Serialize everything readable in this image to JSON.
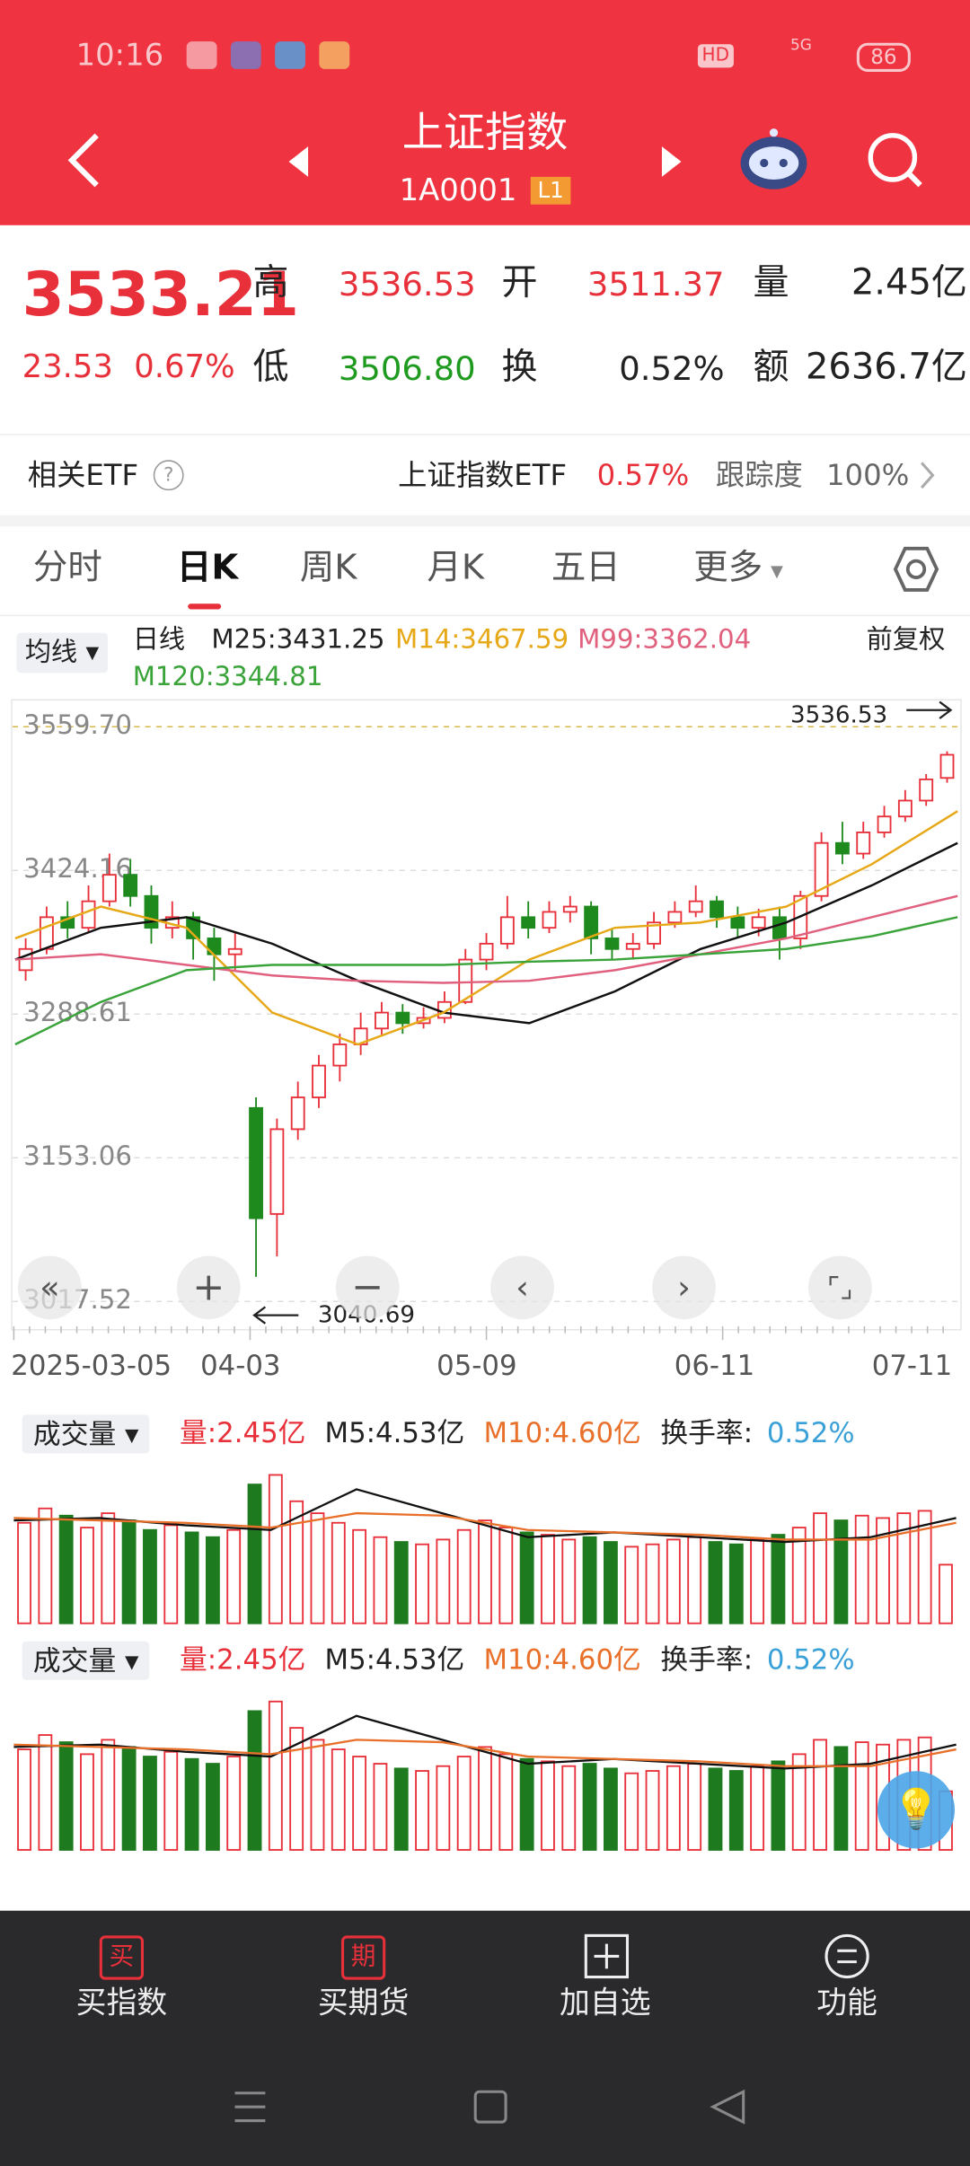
{
  "status": {
    "time": "10:16",
    "hd": "HD",
    "net": "5G",
    "battery": "86"
  },
  "header": {
    "title": "上证指数",
    "code": "1A0001",
    "level": "L1"
  },
  "quote": {
    "price": "3533.21",
    "change": "23.53",
    "change_pct": "0.67%",
    "high_label": "高",
    "high": "3536.53",
    "open_label": "开",
    "open": "3511.37",
    "vol_label": "量",
    "vol": "2.45亿",
    "low_label": "低",
    "low": "3506.80",
    "turn_label": "换",
    "turn": "0.52%",
    "amount_label": "额",
    "amount": "2636.7亿"
  },
  "etf": {
    "label": "相关ETF",
    "name": "上证指数ETF",
    "pct": "0.57%",
    "track_label": "跟踪度",
    "track": "100%"
  },
  "tabs": [
    "分时",
    "日K",
    "周K",
    "月K",
    "五日",
    "更多"
  ],
  "ma_bar": {
    "selector": "均线",
    "period": "日线",
    "m25": "M25:3431.25",
    "m14": "M14:3467.59",
    "m99": "M99:3362.04",
    "m120": "M120:3344.81",
    "adjust": "前复权"
  },
  "kline": {
    "yticks": [
      {
        "value": 3559.7,
        "label": "3559.70"
      },
      {
        "value": 3424.16,
        "label": "3424.16"
      },
      {
        "value": 3288.61,
        "label": "3288.61"
      },
      {
        "value": 3153.06,
        "label": "3153.06"
      },
      {
        "value": 3017.52,
        "label": "3017.52"
      }
    ],
    "high_marker": "3536.53",
    "low_marker": "3040.69",
    "dates": [
      "2025-03-05",
      "04-03",
      "05-09",
      "06-11",
      "07-11"
    ],
    "candles": [
      [
        3330,
        3350,
        3360,
        3320
      ],
      [
        3350,
        3380,
        3390,
        3345
      ],
      [
        3380,
        3370,
        3395,
        3360
      ],
      [
        3370,
        3395,
        3410,
        3365
      ],
      [
        3395,
        3420,
        3440,
        3390
      ],
      [
        3420,
        3400,
        3435,
        3390
      ],
      [
        3400,
        3370,
        3410,
        3355
      ],
      [
        3370,
        3380,
        3395,
        3360
      ],
      [
        3380,
        3360,
        3385,
        3340
      ],
      [
        3360,
        3345,
        3370,
        3320
      ],
      [
        3345,
        3350,
        3365,
        3330
      ],
      [
        3200,
        3096,
        3210,
        3040.69
      ],
      [
        3100,
        3180,
        3190,
        3060
      ],
      [
        3180,
        3210,
        3225,
        3170
      ],
      [
        3210,
        3240,
        3250,
        3200
      ],
      [
        3240,
        3260,
        3270,
        3225
      ],
      [
        3260,
        3275,
        3290,
        3250
      ],
      [
        3275,
        3290,
        3300,
        3268
      ],
      [
        3290,
        3280,
        3298,
        3270
      ],
      [
        3280,
        3285,
        3295,
        3275
      ],
      [
        3285,
        3300,
        3310,
        3280
      ],
      [
        3300,
        3340,
        3350,
        3298
      ],
      [
        3340,
        3355,
        3365,
        3330
      ],
      [
        3355,
        3380,
        3400,
        3350
      ],
      [
        3380,
        3370,
        3395,
        3360
      ],
      [
        3370,
        3385,
        3395,
        3365
      ],
      [
        3385,
        3390,
        3400,
        3375
      ],
      [
        3390,
        3360,
        3395,
        3345
      ],
      [
        3360,
        3350,
        3368,
        3340
      ],
      [
        3350,
        3355,
        3365,
        3340
      ],
      [
        3355,
        3375,
        3385,
        3350
      ],
      [
        3375,
        3385,
        3395,
        3370
      ],
      [
        3385,
        3395,
        3410,
        3380
      ],
      [
        3395,
        3380,
        3400,
        3370
      ],
      [
        3380,
        3370,
        3390,
        3360
      ],
      [
        3370,
        3380,
        3388,
        3362
      ],
      [
        3380,
        3360,
        3390,
        3340
      ],
      [
        3360,
        3400,
        3405,
        3350
      ],
      [
        3400,
        3450,
        3460,
        3395
      ],
      [
        3450,
        3440,
        3470,
        3430
      ],
      [
        3440,
        3460,
        3470,
        3435
      ],
      [
        3460,
        3475,
        3485,
        3455
      ],
      [
        3475,
        3490,
        3500,
        3470
      ],
      [
        3490,
        3510,
        3515,
        3485
      ],
      [
        3511.37,
        3533.21,
        3536.53,
        3506.8
      ]
    ],
    "ma_lines": [
      {
        "color": "#111111",
        "values": [
          3340,
          3370,
          3380,
          3355,
          3320,
          3290,
          3280,
          3310,
          3350,
          3375,
          3410,
          3450
        ]
      },
      {
        "color": "#e6a817",
        "values": [
          3360,
          3390,
          3370,
          3290,
          3260,
          3290,
          3340,
          3370,
          3375,
          3390,
          3430,
          3480
        ]
      },
      {
        "color": "#e0607e",
        "values": [
          3340,
          3345,
          3335,
          3325,
          3320,
          3318,
          3320,
          3330,
          3345,
          3360,
          3380,
          3400
        ]
      },
      {
        "color": "#3aa33a",
        "values": [
          3260,
          3300,
          3330,
          3335,
          3335,
          3335,
          3338,
          3340,
          3345,
          3350,
          3362,
          3380
        ]
      }
    ]
  },
  "volume": {
    "selector": "成交量",
    "vol": "量:2.45亿",
    "m5": "M5:4.53亿",
    "m10": "M10:4.60亿",
    "turn_label": "换手率:",
    "turn": "0.52%",
    "values": [
      4.2,
      4.8,
      4.5,
      4.0,
      4.6,
      4.3,
      3.9,
      4.1,
      3.8,
      3.6,
      3.9,
      5.8,
      6.2,
      5.1,
      4.6,
      4.2,
      3.9,
      3.6,
      3.4,
      3.3,
      3.5,
      3.9,
      4.3,
      4.0,
      3.8,
      3.7,
      3.5,
      3.6,
      3.4,
      3.2,
      3.3,
      3.5,
      3.6,
      3.4,
      3.3,
      3.5,
      3.7,
      4.0,
      4.6,
      4.3,
      4.5,
      4.4,
      4.6,
      4.7,
      2.45
    ],
    "ma_lines": [
      {
        "color": "#111111",
        "values": [
          4.3,
          4.4,
          4.1,
          3.9,
          5.6,
          4.6,
          3.6,
          3.8,
          3.6,
          3.4,
          3.6,
          4.4
        ]
      },
      {
        "color": "#e8702a",
        "values": [
          4.4,
          4.3,
          4.2,
          4.0,
          4.6,
          4.5,
          3.9,
          3.8,
          3.7,
          3.5,
          3.5,
          4.2
        ]
      }
    ]
  },
  "nav": {
    "buy_icon": "买",
    "buy": "买指数",
    "fut_icon": "期",
    "fut": "买期货",
    "watch": "加自选",
    "func": "功能"
  }
}
